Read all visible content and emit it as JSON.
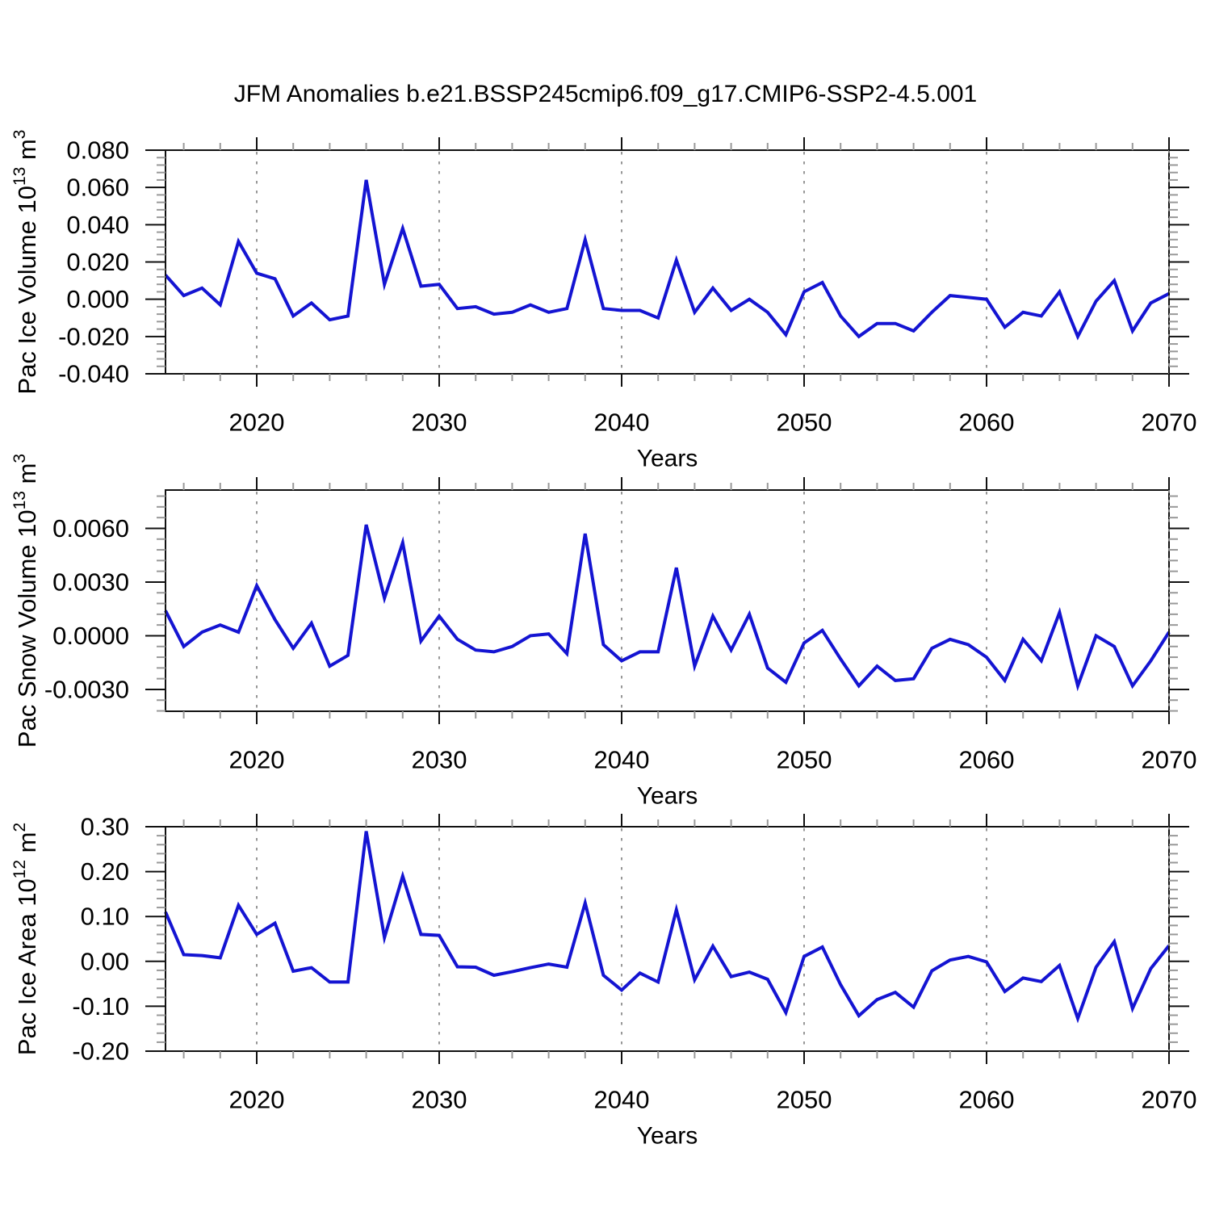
{
  "title": "JFM Anomalies b.e21.BSSP245cmip6.f09_g17.CMIP6-SSP2-4.5.001",
  "colors": {
    "line": "#1414d2",
    "grid": "#8c8c8c",
    "axis": "#111111",
    "minor_tick": "#999999",
    "text": "#000000"
  },
  "x_axis": {
    "label": "Years",
    "start": 2015,
    "end": 2070,
    "major_ticks": [
      2020,
      2030,
      2040,
      2050,
      2060,
      2070
    ],
    "major_labels": [
      "2020",
      "2030",
      "2040",
      "2050",
      "2060",
      "2070"
    ],
    "minor_step": 2,
    "grid_years": [
      2020,
      2030,
      2040,
      2050,
      2060,
      2070
    ]
  },
  "chart_data": [
    {
      "type": "line",
      "series_name": "Pac Ice Volume",
      "ylabel_segments": [
        {
          "t": "Pac Ice Volume 10",
          "sup": false
        },
        {
          "t": "13",
          "sup": true
        },
        {
          "t": " m",
          "sup": false
        },
        {
          "t": "3",
          "sup": true
        }
      ],
      "xlabel": "Years",
      "x_start": 2015,
      "x_end": 2070,
      "x_step": 1,
      "values": [
        0.013,
        0.002,
        0.006,
        -0.003,
        0.031,
        0.014,
        0.011,
        -0.009,
        -0.002,
        -0.011,
        -0.009,
        0.064,
        0.008,
        0.038,
        0.007,
        0.008,
        -0.005,
        -0.004,
        -0.008,
        -0.007,
        -0.003,
        -0.007,
        -0.005,
        0.032,
        -0.005,
        -0.006,
        -0.006,
        -0.01,
        0.021,
        -0.007,
        0.006,
        -0.006,
        0.0,
        -0.007,
        -0.019,
        0.004,
        0.009,
        -0.009,
        -0.02,
        -0.013,
        -0.013,
        -0.017,
        -0.007,
        0.002,
        0.001,
        0.0,
        -0.015,
        -0.007,
        -0.009,
        0.004,
        -0.02,
        -0.001,
        0.01,
        -0.017,
        -0.002,
        0.003
      ],
      "ylim": [
        -0.04,
        0.08
      ],
      "yticks": [
        {
          "v": 0.08,
          "label": "0.080"
        },
        {
          "v": 0.06,
          "label": "0.060"
        },
        {
          "v": 0.04,
          "label": "0.040"
        },
        {
          "v": 0.02,
          "label": "0.020"
        },
        {
          "v": 0.0,
          "label": "0.000"
        },
        {
          "v": -0.02,
          "label": "-0.020"
        },
        {
          "v": -0.04,
          "label": "-0.040"
        }
      ],
      "y_minor_step": 0.004,
      "grid": "vertical-dashed"
    },
    {
      "type": "line",
      "series_name": "Pac Snow Volume",
      "ylabel_segments": [
        {
          "t": "Pac Snow Volume 10",
          "sup": false
        },
        {
          "t": "13",
          "sup": true
        },
        {
          "t": " m",
          "sup": false
        },
        {
          "t": "3",
          "sup": true
        }
      ],
      "xlabel": "Years",
      "x_start": 2015,
      "x_end": 2070,
      "x_step": 1,
      "values": [
        0.0014,
        -0.0006,
        0.0002,
        0.0006,
        0.0002,
        0.0028,
        0.0009,
        -0.0007,
        0.0007,
        -0.0017,
        -0.0011,
        0.0062,
        0.0021,
        0.0052,
        -0.0003,
        0.0011,
        -0.0002,
        -0.0008,
        -0.0009,
        -0.0006,
        0.0,
        0.0001,
        -0.001,
        0.0057,
        -0.0005,
        -0.0014,
        -0.0009,
        -0.0009,
        0.0038,
        -0.0017,
        0.0011,
        -0.0008,
        0.0012,
        -0.0018,
        -0.0026,
        -0.0004,
        0.0003,
        -0.0013,
        -0.0028,
        -0.0017,
        -0.0025,
        -0.0024,
        -0.0007,
        -0.0002,
        -0.0005,
        -0.0012,
        -0.0025,
        -0.0002,
        -0.0014,
        0.0013,
        -0.0028,
        0.0,
        -0.0006,
        -0.0028,
        -0.0014,
        0.0002
      ],
      "ylim": [
        -0.00422,
        0.00814
      ],
      "yticks": [
        {
          "v": 0.006,
          "label": "0.0060"
        },
        {
          "v": 0.003,
          "label": "0.0030"
        },
        {
          "v": 0.0,
          "label": "0.0000"
        },
        {
          "v": -0.003,
          "label": "-0.0030"
        }
      ],
      "y_minor_step": 0.0006,
      "grid": "vertical-dashed"
    },
    {
      "type": "line",
      "series_name": "Pac Ice Area",
      "ylabel_segments": [
        {
          "t": "Pac Ice Area 10",
          "sup": false
        },
        {
          "t": "12",
          "sup": true
        },
        {
          "t": " m",
          "sup": false
        },
        {
          "t": "2",
          "sup": true
        }
      ],
      "xlabel": "Years",
      "x_start": 2015,
      "x_end": 2070,
      "x_step": 1,
      "values": [
        0.11,
        0.015,
        0.013,
        0.008,
        0.125,
        0.06,
        0.085,
        -0.022,
        -0.014,
        -0.046,
        -0.046,
        0.29,
        0.053,
        0.19,
        0.06,
        0.058,
        -0.012,
        -0.013,
        -0.031,
        -0.023,
        -0.014,
        -0.006,
        -0.013,
        0.13,
        -0.031,
        -0.064,
        -0.026,
        -0.046,
        0.115,
        -0.041,
        0.034,
        -0.034,
        -0.024,
        -0.04,
        -0.114,
        0.011,
        0.032,
        -0.052,
        -0.121,
        -0.085,
        -0.069,
        -0.102,
        -0.021,
        0.003,
        0.011,
        -0.001,
        -0.067,
        -0.037,
        -0.045,
        -0.009,
        -0.127,
        -0.013,
        0.044,
        -0.105,
        -0.016,
        0.035
      ],
      "ylim": [
        -0.2,
        0.3
      ],
      "yticks": [
        {
          "v": 0.3,
          "label": "0.30"
        },
        {
          "v": 0.2,
          "label": "0.20"
        },
        {
          "v": 0.1,
          "label": "0.10"
        },
        {
          "v": 0.0,
          "label": "0.00"
        },
        {
          "v": -0.1,
          "label": "-0.10"
        },
        {
          "v": -0.2,
          "label": "-0.20"
        }
      ],
      "y_minor_step": 0.02,
      "grid": "vertical-dashed"
    }
  ]
}
